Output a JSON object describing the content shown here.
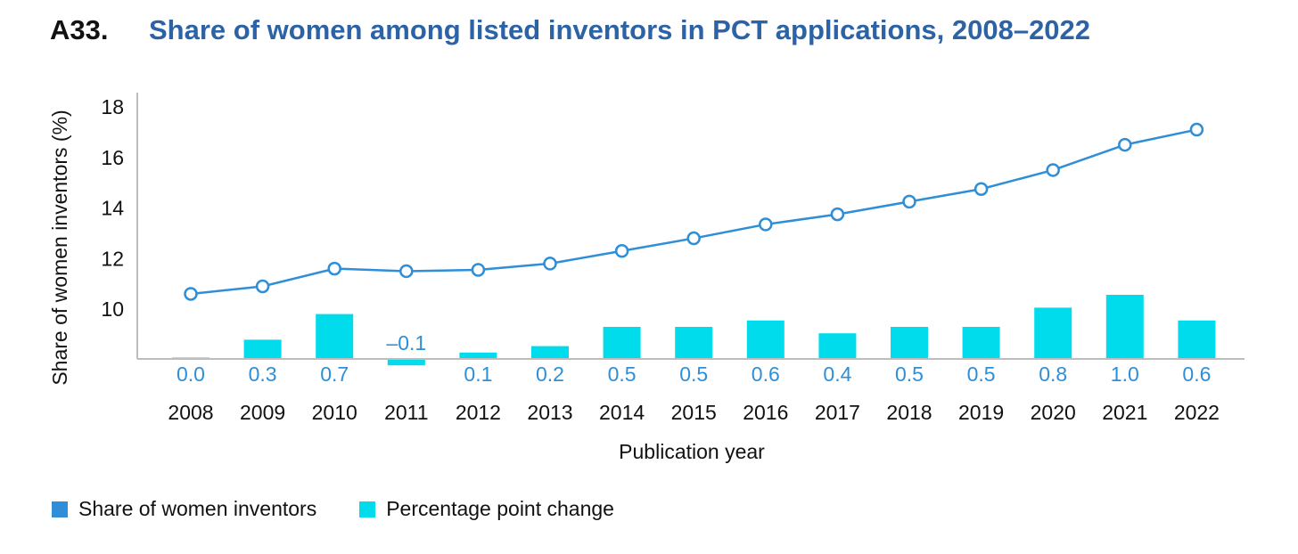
{
  "figure": {
    "number": "A33.",
    "title": "Share of women among listed inventors in PCT applications, 2008–2022"
  },
  "chart_data": {
    "type": "line+bar",
    "title": "Share of women among listed inventors in PCT applications, 2008–2022",
    "xlabel": "Publication year",
    "ylabel": "Share of women inventors (%)",
    "categories": [
      "2008",
      "2009",
      "2010",
      "2011",
      "2012",
      "2013",
      "2014",
      "2015",
      "2016",
      "2017",
      "2018",
      "2019",
      "2020",
      "2021",
      "2022"
    ],
    "y_ticks": [
      "10",
      "12",
      "14",
      "16",
      "18"
    ],
    "ylim": [
      8,
      18.6
    ],
    "series": [
      {
        "name": "Share of women inventors",
        "type": "line",
        "color": "#2e8fd8",
        "values": [
          10.6,
          10.9,
          11.6,
          11.5,
          11.55,
          11.8,
          12.3,
          12.8,
          13.35,
          13.75,
          14.25,
          14.75,
          15.5,
          16.5,
          17.1
        ]
      },
      {
        "name": "Percentage point change",
        "type": "bar",
        "color": "#00dcec",
        "values": [
          0.0,
          0.3,
          0.7,
          -0.1,
          0.1,
          0.2,
          0.5,
          0.5,
          0.6,
          0.4,
          0.5,
          0.5,
          0.8,
          1.0,
          0.6
        ],
        "labels": [
          "0.0",
          "0.3",
          "0.7",
          "–0.1",
          "0.1",
          "0.2",
          "0.5",
          "0.5",
          "0.6",
          "0.4",
          "0.5",
          "0.5",
          "0.8",
          "1.0",
          "0.6"
        ]
      }
    ],
    "legend_position": "bottom-left"
  }
}
